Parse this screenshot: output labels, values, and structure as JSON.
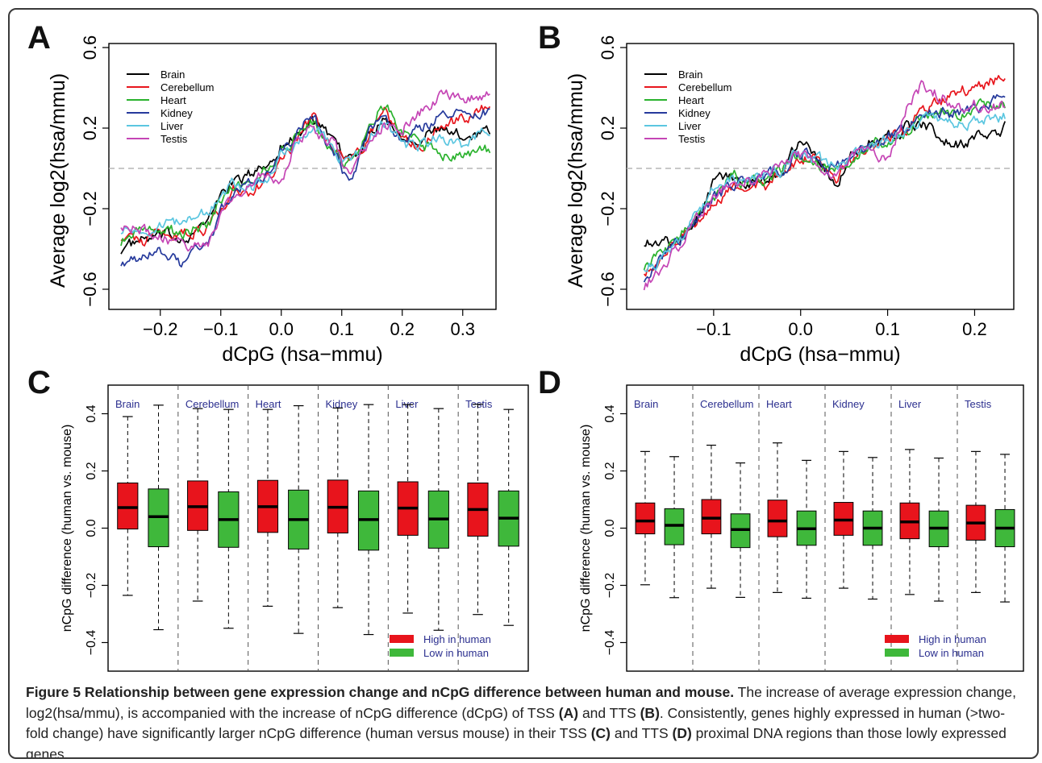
{
  "panel_labels": {
    "a": "A",
    "b": "B",
    "c": "C",
    "d": "D"
  },
  "legend_tissues": [
    "Brain",
    "Cerebellum",
    "Heart",
    "Kidney",
    "Liver",
    "Testis"
  ],
  "colors": {
    "Brain": "#000000",
    "Cerebellum": "#e8161d",
    "Heart": "#2ab22d",
    "Kidney": "#263a9c",
    "Liver": "#5bc6e0",
    "Testis": "#c545b5",
    "high_box": "#e8141c",
    "low_box": "#3fb83b",
    "tissue_label": "#2b2f8f",
    "dashed": "#b5b5b5"
  },
  "caption": {
    "title": "Figure 5 Relationship between gene expression change and nCpG difference between human and mouse.",
    "body_1": "The increase of average expression change, log2(hsa/mmu), is accompanied with the increase of nCpG difference (dCpG) of TSS ",
    "ref_a": "(A)",
    "body_2": " and TTS ",
    "ref_b": "(B)",
    "body_3": ". Consistently, genes highly expressed in human (>two-fold change) have significantly larger nCpG difference (human versus mouse) in their TSS ",
    "ref_c": "(C)",
    "body_4": " and TTS ",
    "ref_d": "(D)",
    "body_5": " proximal DNA regions than those lowly expressed genes."
  },
  "chart_data": [
    {
      "panel": "A",
      "type": "line",
      "xlabel": "dCpG (hsa−mmu)",
      "ylabel": "Average log2(hsa/mmu)",
      "xlim": [
        -0.27,
        0.345
      ],
      "ylim": [
        -0.6,
        0.6
      ],
      "xticks": [
        "−0.2",
        "−0.1",
        "0.0",
        "0.1",
        "0.2",
        "0.3"
      ],
      "xtick_values": [
        -0.2,
        -0.1,
        0.0,
        0.1,
        0.2,
        0.3
      ],
      "yticks": [
        "−0.6",
        "−0.2",
        "0.2",
        "0.6"
      ],
      "ytick_values": [
        -0.6,
        -0.2,
        0.2,
        0.6
      ],
      "reference_line_y": 0.0,
      "legend": "top-left",
      "series": [
        {
          "name": "Brain",
          "x": [
            -0.265,
            -0.23,
            -0.2,
            -0.16,
            -0.12,
            -0.1,
            -0.08,
            -0.05,
            -0.02,
            0.0,
            0.02,
            0.05,
            0.07,
            0.09,
            0.11,
            0.13,
            0.15,
            0.17,
            0.2,
            0.23,
            0.26,
            0.3,
            0.345
          ],
          "y": [
            -0.4,
            -0.36,
            -0.34,
            -0.34,
            -0.27,
            -0.12,
            -0.07,
            -0.03,
            0.03,
            0.12,
            0.15,
            0.24,
            0.18,
            0.1,
            0.04,
            0.1,
            0.2,
            0.26,
            0.16,
            0.16,
            0.19,
            0.16,
            0.2
          ]
        },
        {
          "name": "Cerebellum",
          "x": [
            -0.265,
            -0.23,
            -0.2,
            -0.16,
            -0.12,
            -0.1,
            -0.08,
            -0.05,
            -0.02,
            0.0,
            0.02,
            0.05,
            0.07,
            0.09,
            0.11,
            0.13,
            0.15,
            0.17,
            0.2,
            0.23,
            0.26,
            0.3,
            0.345
          ],
          "y": [
            -0.33,
            -0.36,
            -0.32,
            -0.32,
            -0.3,
            -0.19,
            -0.1,
            -0.13,
            -0.04,
            0.02,
            0.12,
            0.25,
            0.19,
            0.12,
            0.04,
            0.08,
            0.2,
            0.3,
            0.14,
            0.1,
            0.22,
            0.24,
            0.31
          ]
        },
        {
          "name": "Heart",
          "x": [
            -0.265,
            -0.23,
            -0.2,
            -0.16,
            -0.12,
            -0.1,
            -0.08,
            -0.05,
            -0.02,
            0.0,
            0.02,
            0.05,
            0.07,
            0.09,
            0.11,
            0.13,
            0.15,
            0.17,
            0.2,
            0.23,
            0.26,
            0.3,
            0.345
          ],
          "y": [
            -0.36,
            -0.32,
            -0.31,
            -0.32,
            -0.28,
            -0.16,
            -0.08,
            -0.06,
            0.0,
            0.08,
            0.14,
            0.24,
            0.14,
            0.1,
            0.02,
            0.1,
            0.24,
            0.32,
            0.18,
            0.12,
            0.08,
            0.06,
            0.1
          ]
        },
        {
          "name": "Kidney",
          "x": [
            -0.265,
            -0.23,
            -0.2,
            -0.16,
            -0.12,
            -0.1,
            -0.08,
            -0.05,
            -0.02,
            0.0,
            0.02,
            0.05,
            0.07,
            0.09,
            0.11,
            0.13,
            0.15,
            0.17,
            0.2,
            0.23,
            0.26,
            0.3,
            0.345
          ],
          "y": [
            -0.46,
            -0.45,
            -0.42,
            -0.48,
            -0.34,
            -0.22,
            -0.12,
            -0.05,
            -0.02,
            0.1,
            0.14,
            0.27,
            0.16,
            0.06,
            -0.08,
            0.06,
            0.2,
            0.24,
            0.14,
            0.2,
            0.26,
            0.27,
            0.28
          ]
        },
        {
          "name": "Liver",
          "x": [
            -0.265,
            -0.23,
            -0.2,
            -0.16,
            -0.12,
            -0.1,
            -0.08,
            -0.05,
            -0.02,
            0.0,
            0.02,
            0.05,
            0.07,
            0.09,
            0.11,
            0.13,
            0.15,
            0.17,
            0.2,
            0.23,
            0.26,
            0.3,
            0.345
          ],
          "y": [
            -0.3,
            -0.3,
            -0.28,
            -0.27,
            -0.21,
            -0.15,
            -0.08,
            -0.1,
            -0.04,
            0.06,
            0.11,
            0.22,
            0.16,
            0.08,
            0.02,
            0.09,
            0.18,
            0.22,
            0.12,
            0.11,
            0.16,
            0.12,
            0.2
          ]
        },
        {
          "name": "Testis",
          "x": [
            -0.265,
            -0.23,
            -0.2,
            -0.16,
            -0.12,
            -0.1,
            -0.08,
            -0.05,
            -0.02,
            0.0,
            0.02,
            0.05,
            0.07,
            0.09,
            0.11,
            0.13,
            0.15,
            0.17,
            0.2,
            0.23,
            0.26,
            0.3,
            0.345
          ],
          "y": [
            -0.27,
            -0.31,
            -0.34,
            -0.38,
            -0.38,
            -0.2,
            -0.15,
            -0.05,
            -0.02,
            -0.1,
            0.1,
            0.2,
            0.14,
            0.12,
            -0.04,
            0.08,
            0.16,
            0.22,
            0.2,
            0.28,
            0.36,
            0.34,
            0.36
          ]
        }
      ]
    },
    {
      "panel": "B",
      "type": "line",
      "xlabel": "dCpG (hsa−mmu)",
      "ylabel": "Average log2(hsa/mmu)",
      "xlim": [
        -0.185,
        0.235
      ],
      "ylim": [
        -0.6,
        0.6
      ],
      "xticks": [
        "−0.1",
        "0.0",
        "0.1",
        "0.2"
      ],
      "xtick_values": [
        -0.1,
        0.0,
        0.1,
        0.2
      ],
      "yticks": [
        "−0.6",
        "−0.2",
        "0.2",
        "0.6"
      ],
      "ytick_values": [
        -0.6,
        -0.2,
        0.2,
        0.6
      ],
      "reference_line_y": 0.0,
      "legend": "top-left",
      "series": [
        {
          "name": "Brain",
          "x": [
            -0.18,
            -0.16,
            -0.14,
            -0.12,
            -0.1,
            -0.08,
            -0.06,
            -0.04,
            -0.02,
            0.0,
            0.02,
            0.04,
            0.06,
            0.08,
            0.1,
            0.12,
            0.14,
            0.16,
            0.18,
            0.2,
            0.235
          ],
          "y": [
            -0.36,
            -0.37,
            -0.36,
            -0.25,
            -0.06,
            -0.04,
            -0.1,
            -0.06,
            -0.02,
            0.18,
            0.06,
            -0.08,
            0.08,
            0.14,
            0.16,
            0.2,
            0.22,
            0.16,
            0.12,
            0.14,
            0.2
          ]
        },
        {
          "name": "Cerebellum",
          "x": [
            -0.18,
            -0.16,
            -0.14,
            -0.12,
            -0.1,
            -0.08,
            -0.06,
            -0.04,
            -0.02,
            0.0,
            0.02,
            0.04,
            0.06,
            0.08,
            0.1,
            0.12,
            0.14,
            0.16,
            0.18,
            0.2,
            0.235
          ],
          "y": [
            -0.5,
            -0.44,
            -0.36,
            -0.26,
            -0.16,
            -0.1,
            -0.06,
            -0.08,
            -0.02,
            0.06,
            0.04,
            -0.06,
            0.04,
            0.1,
            0.16,
            0.18,
            0.3,
            0.32,
            0.38,
            0.4,
            0.46
          ]
        },
        {
          "name": "Heart",
          "x": [
            -0.18,
            -0.16,
            -0.14,
            -0.12,
            -0.1,
            -0.08,
            -0.06,
            -0.04,
            -0.02,
            0.0,
            0.02,
            0.04,
            0.06,
            0.08,
            0.1,
            0.12,
            0.14,
            0.16,
            0.18,
            0.2,
            0.235
          ],
          "y": [
            -0.48,
            -0.42,
            -0.34,
            -0.24,
            -0.14,
            -0.02,
            -0.08,
            -0.06,
            0.0,
            0.06,
            0.02,
            -0.02,
            0.06,
            0.12,
            0.14,
            0.18,
            0.26,
            0.28,
            0.26,
            0.3,
            0.32
          ]
        },
        {
          "name": "Kidney",
          "x": [
            -0.18,
            -0.16,
            -0.14,
            -0.12,
            -0.1,
            -0.08,
            -0.06,
            -0.04,
            -0.02,
            0.0,
            0.02,
            0.04,
            0.06,
            0.08,
            0.1,
            0.12,
            0.14,
            0.16,
            0.18,
            0.2,
            0.235
          ],
          "y": [
            -0.54,
            -0.44,
            -0.36,
            -0.26,
            -0.14,
            -0.08,
            -0.06,
            -0.04,
            0.0,
            0.08,
            0.04,
            0.0,
            0.06,
            0.12,
            0.16,
            0.18,
            0.3,
            0.28,
            0.28,
            0.3,
            0.34
          ]
        },
        {
          "name": "Liver",
          "x": [
            -0.18,
            -0.16,
            -0.14,
            -0.12,
            -0.1,
            -0.08,
            -0.06,
            -0.04,
            -0.02,
            0.0,
            0.02,
            0.04,
            0.06,
            0.08,
            0.1,
            0.12,
            0.14,
            0.16,
            0.18,
            0.2,
            0.235
          ],
          "y": [
            -0.48,
            -0.46,
            -0.36,
            -0.24,
            -0.12,
            -0.06,
            -0.06,
            -0.04,
            0.0,
            0.08,
            0.04,
            0.0,
            0.06,
            0.12,
            0.14,
            0.18,
            0.26,
            0.24,
            0.22,
            0.24,
            0.26
          ]
        },
        {
          "name": "Testis",
          "x": [
            -0.18,
            -0.16,
            -0.14,
            -0.12,
            -0.1,
            -0.08,
            -0.06,
            -0.04,
            -0.02,
            0.0,
            0.02,
            0.04,
            0.06,
            0.08,
            0.1,
            0.12,
            0.14,
            0.16,
            0.18,
            0.2,
            0.235
          ],
          "y": [
            -0.58,
            -0.5,
            -0.38,
            -0.26,
            -0.14,
            -0.06,
            -0.06,
            -0.04,
            0.0,
            0.06,
            0.02,
            -0.02,
            0.06,
            0.1,
            0.02,
            0.28,
            0.42,
            0.36,
            0.3,
            0.32,
            0.3
          ]
        }
      ]
    },
    {
      "panel": "C",
      "type": "box",
      "ylabel": "nCpG difference (human vs. mouse)",
      "ylim": [
        -0.5,
        0.5
      ],
      "yticks": [
        "−0.4",
        "−0.2",
        "0.0",
        "0.2",
        "0.4"
      ],
      "ytick_values": [
        -0.4,
        -0.2,
        0.0,
        0.2,
        0.4
      ],
      "legend": "bottom-right",
      "legend_entries": [
        "High in human",
        "Low in human"
      ],
      "groups": [
        {
          "tissue": "Brain",
          "high": {
            "whisker_low": -0.235,
            "q1": -0.003,
            "median": 0.072,
            "q3": 0.158,
            "whisker_high": 0.39
          },
          "low": {
            "whisker_low": -0.355,
            "q1": -0.065,
            "median": 0.04,
            "q3": 0.137,
            "whisker_high": 0.43
          }
        },
        {
          "tissue": "Cerebellum",
          "high": {
            "whisker_low": -0.255,
            "q1": -0.008,
            "median": 0.075,
            "q3": 0.165,
            "whisker_high": 0.418
          },
          "low": {
            "whisker_low": -0.35,
            "q1": -0.067,
            "median": 0.03,
            "q3": 0.127,
            "whisker_high": 0.415
          }
        },
        {
          "tissue": "Heart",
          "high": {
            "whisker_low": -0.273,
            "q1": -0.015,
            "median": 0.075,
            "q3": 0.167,
            "whisker_high": 0.415
          },
          "low": {
            "whisker_low": -0.368,
            "q1": -0.073,
            "median": 0.03,
            "q3": 0.133,
            "whisker_high": 0.428
          }
        },
        {
          "tissue": "Kidney",
          "high": {
            "whisker_low": -0.278,
            "q1": -0.017,
            "median": 0.073,
            "q3": 0.168,
            "whisker_high": 0.42
          },
          "low": {
            "whisker_low": -0.372,
            "q1": -0.077,
            "median": 0.03,
            "q3": 0.13,
            "whisker_high": 0.432
          }
        },
        {
          "tissue": "Liver",
          "high": {
            "whisker_low": -0.297,
            "q1": -0.025,
            "median": 0.07,
            "q3": 0.162,
            "whisker_high": 0.432
          },
          "low": {
            "whisker_low": -0.357,
            "q1": -0.07,
            "median": 0.032,
            "q3": 0.13,
            "whisker_high": 0.418
          }
        },
        {
          "tissue": "Testis",
          "high": {
            "whisker_low": -0.302,
            "q1": -0.028,
            "median": 0.065,
            "q3": 0.158,
            "whisker_high": 0.433
          },
          "low": {
            "whisker_low": -0.34,
            "q1": -0.063,
            "median": 0.035,
            "q3": 0.13,
            "whisker_high": 0.415
          }
        }
      ]
    },
    {
      "panel": "D",
      "type": "box",
      "ylabel": "nCpG difference (human vs. mouse)",
      "ylim": [
        -0.5,
        0.5
      ],
      "yticks": [
        "−0.4",
        "−0.2",
        "0.0",
        "0.2",
        "0.4"
      ],
      "ytick_values": [
        -0.4,
        -0.2,
        0.0,
        0.2,
        0.4
      ],
      "legend": "bottom-right",
      "legend_entries": [
        "High in human",
        "Low in human"
      ],
      "groups": [
        {
          "tissue": "Brain",
          "high": {
            "whisker_low": -0.198,
            "q1": -0.02,
            "median": 0.025,
            "q3": 0.088,
            "whisker_high": 0.268
          },
          "low": {
            "whisker_low": -0.243,
            "q1": -0.058,
            "median": 0.01,
            "q3": 0.068,
            "whisker_high": 0.25
          }
        },
        {
          "tissue": "Cerebellum",
          "high": {
            "whisker_low": -0.21,
            "q1": -0.02,
            "median": 0.035,
            "q3": 0.1,
            "whisker_high": 0.29
          },
          "low": {
            "whisker_low": -0.242,
            "q1": -0.068,
            "median": -0.005,
            "q3": 0.05,
            "whisker_high": 0.228
          }
        },
        {
          "tissue": "Heart",
          "high": {
            "whisker_low": -0.225,
            "q1": -0.03,
            "median": 0.025,
            "q3": 0.098,
            "whisker_high": 0.298
          },
          "low": {
            "whisker_low": -0.245,
            "q1": -0.06,
            "median": -0.002,
            "q3": 0.06,
            "whisker_high": 0.237
          }
        },
        {
          "tissue": "Kidney",
          "high": {
            "whisker_low": -0.21,
            "q1": -0.025,
            "median": 0.028,
            "q3": 0.09,
            "whisker_high": 0.268
          },
          "low": {
            "whisker_low": -0.248,
            "q1": -0.06,
            "median": 0.0,
            "q3": 0.06,
            "whisker_high": 0.247
          }
        },
        {
          "tissue": "Liver",
          "high": {
            "whisker_low": -0.232,
            "q1": -0.037,
            "median": 0.022,
            "q3": 0.088,
            "whisker_high": 0.275
          },
          "low": {
            "whisker_low": -0.255,
            "q1": -0.065,
            "median": 0.0,
            "q3": 0.06,
            "whisker_high": 0.245
          }
        },
        {
          "tissue": "Testis",
          "high": {
            "whisker_low": -0.225,
            "q1": -0.042,
            "median": 0.018,
            "q3": 0.08,
            "whisker_high": 0.268
          },
          "low": {
            "whisker_low": -0.258,
            "q1": -0.065,
            "median": 0.0,
            "q3": 0.065,
            "whisker_high": 0.258
          }
        }
      ]
    }
  ]
}
